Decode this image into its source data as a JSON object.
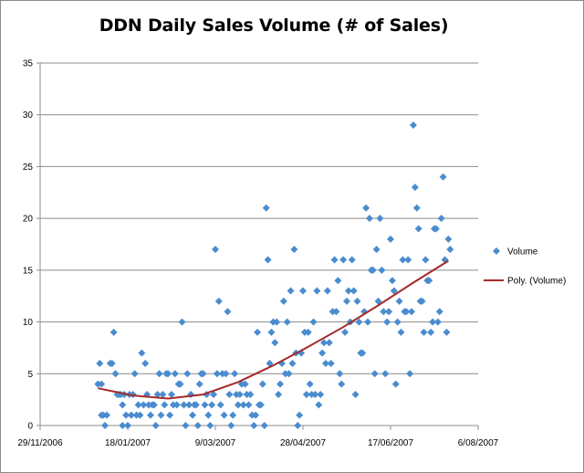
{
  "chart_data": {
    "type": "scatter",
    "title": "DDN Daily Sales Volume (# of Sales)",
    "xlabel": "",
    "ylabel": "",
    "x_ticks": [
      "29/11/2006",
      "18/01/2007",
      "9/03/2007",
      "28/04/2007",
      "17/06/2007",
      "6/08/2007"
    ],
    "xlim": [
      "2006-11-29",
      "2007-08-06"
    ],
    "ylim": [
      0,
      35
    ],
    "y_ticks": [
      0,
      5,
      10,
      15,
      20,
      25,
      30,
      35
    ],
    "grid": "horizontal",
    "legend_position": "right",
    "colors": {
      "marker": "#4a8ccf",
      "trend": "#a52a2a",
      "grid": "#8c8c8c"
    },
    "series": [
      {
        "name": "Volume",
        "kind": "markers",
        "points": [
          [
            "2007-01-01",
            4
          ],
          [
            "2007-01-02",
            6
          ],
          [
            "2007-01-03",
            4
          ],
          [
            "2007-01-03",
            1
          ],
          [
            "2007-01-04",
            1
          ],
          [
            "2007-01-05",
            0
          ],
          [
            "2007-01-06",
            1
          ],
          [
            "2007-01-08",
            6
          ],
          [
            "2007-01-09",
            6
          ],
          [
            "2007-01-10",
            9
          ],
          [
            "2007-01-11",
            5
          ],
          [
            "2007-01-12",
            3
          ],
          [
            "2007-01-13",
            3
          ],
          [
            "2007-01-14",
            3
          ],
          [
            "2007-01-15",
            0
          ],
          [
            "2007-01-15",
            2
          ],
          [
            "2007-01-16",
            3
          ],
          [
            "2007-01-17",
            1
          ],
          [
            "2007-01-18",
            0
          ],
          [
            "2007-01-19",
            3
          ],
          [
            "2007-01-20",
            1
          ],
          [
            "2007-01-21",
            3
          ],
          [
            "2007-01-22",
            5
          ],
          [
            "2007-01-23",
            1
          ],
          [
            "2007-01-24",
            2
          ],
          [
            "2007-01-25",
            1
          ],
          [
            "2007-01-26",
            7
          ],
          [
            "2007-01-27",
            2
          ],
          [
            "2007-01-28",
            6
          ],
          [
            "2007-01-29",
            3
          ],
          [
            "2007-01-30",
            2
          ],
          [
            "2007-01-31",
            1
          ],
          [
            "2007-02-01",
            2
          ],
          [
            "2007-02-02",
            2
          ],
          [
            "2007-02-03",
            0
          ],
          [
            "2007-02-04",
            3
          ],
          [
            "2007-02-05",
            5
          ],
          [
            "2007-02-06",
            1
          ],
          [
            "2007-02-07",
            3
          ],
          [
            "2007-02-08",
            2
          ],
          [
            "2007-02-09",
            5
          ],
          [
            "2007-02-10",
            5
          ],
          [
            "2007-02-11",
            1
          ],
          [
            "2007-02-12",
            3
          ],
          [
            "2007-02-13",
            2
          ],
          [
            "2007-02-14",
            5
          ],
          [
            "2007-02-15",
            2
          ],
          [
            "2007-02-16",
            4
          ],
          [
            "2007-02-17",
            4
          ],
          [
            "2007-02-18",
            10
          ],
          [
            "2007-02-19",
            2
          ],
          [
            "2007-02-20",
            0
          ],
          [
            "2007-02-21",
            5
          ],
          [
            "2007-02-22",
            2
          ],
          [
            "2007-02-23",
            3
          ],
          [
            "2007-02-24",
            1
          ],
          [
            "2007-02-25",
            2
          ],
          [
            "2007-02-26",
            2
          ],
          [
            "2007-02-27",
            0
          ],
          [
            "2007-02-28",
            4
          ],
          [
            "2007-03-01",
            5
          ],
          [
            "2007-03-02",
            5
          ],
          [
            "2007-03-03",
            2
          ],
          [
            "2007-03-04",
            3
          ],
          [
            "2007-03-05",
            1
          ],
          [
            "2007-03-06",
            0
          ],
          [
            "2007-03-07",
            2
          ],
          [
            "2007-03-08",
            3
          ],
          [
            "2007-03-09",
            17
          ],
          [
            "2007-03-10",
            5
          ],
          [
            "2007-03-11",
            12
          ],
          [
            "2007-03-12",
            2
          ],
          [
            "2007-03-13",
            5
          ],
          [
            "2007-03-14",
            1
          ],
          [
            "2007-03-15",
            5
          ],
          [
            "2007-03-16",
            11
          ],
          [
            "2007-03-17",
            3
          ],
          [
            "2007-03-18",
            0
          ],
          [
            "2007-03-19",
            1
          ],
          [
            "2007-03-20",
            5
          ],
          [
            "2007-03-21",
            3
          ],
          [
            "2007-03-22",
            2
          ],
          [
            "2007-03-23",
            3
          ],
          [
            "2007-03-24",
            4
          ],
          [
            "2007-03-25",
            2
          ],
          [
            "2007-03-26",
            4
          ],
          [
            "2007-03-27",
            3
          ],
          [
            "2007-03-28",
            2
          ],
          [
            "2007-03-29",
            3
          ],
          [
            "2007-03-30",
            1
          ],
          [
            "2007-03-31",
            0
          ],
          [
            "2007-04-01",
            1
          ],
          [
            "2007-04-02",
            9
          ],
          [
            "2007-04-03",
            2
          ],
          [
            "2007-04-04",
            2
          ],
          [
            "2007-04-05",
            4
          ],
          [
            "2007-04-06",
            0
          ],
          [
            "2007-04-07",
            21
          ],
          [
            "2007-04-08",
            16
          ],
          [
            "2007-04-09",
            6
          ],
          [
            "2007-04-10",
            9
          ],
          [
            "2007-04-11",
            10
          ],
          [
            "2007-04-12",
            8
          ],
          [
            "2007-04-13",
            10
          ],
          [
            "2007-04-14",
            3
          ],
          [
            "2007-04-15",
            4
          ],
          [
            "2007-04-16",
            6
          ],
          [
            "2007-04-17",
            12
          ],
          [
            "2007-04-18",
            5
          ],
          [
            "2007-04-19",
            10
          ],
          [
            "2007-04-20",
            5
          ],
          [
            "2007-04-21",
            13
          ],
          [
            "2007-04-22",
            6
          ],
          [
            "2007-04-23",
            17
          ],
          [
            "2007-04-24",
            7
          ],
          [
            "2007-04-25",
            0
          ],
          [
            "2007-04-26",
            1
          ],
          [
            "2007-04-27",
            7
          ],
          [
            "2007-04-28",
            13
          ],
          [
            "2007-04-29",
            9
          ],
          [
            "2007-04-30",
            3
          ],
          [
            "2007-05-01",
            9
          ],
          [
            "2007-05-02",
            4
          ],
          [
            "2007-05-03",
            3
          ],
          [
            "2007-05-04",
            10
          ],
          [
            "2007-05-05",
            3
          ],
          [
            "2007-05-06",
            13
          ],
          [
            "2007-05-07",
            2
          ],
          [
            "2007-05-08",
            3
          ],
          [
            "2007-05-09",
            7
          ],
          [
            "2007-05-10",
            8
          ],
          [
            "2007-05-11",
            6
          ],
          [
            "2007-05-12",
            13
          ],
          [
            "2007-05-13",
            8
          ],
          [
            "2007-05-14",
            6
          ],
          [
            "2007-05-15",
            11
          ],
          [
            "2007-05-16",
            16
          ],
          [
            "2007-05-17",
            11
          ],
          [
            "2007-05-18",
            14
          ],
          [
            "2007-05-19",
            5
          ],
          [
            "2007-05-20",
            4
          ],
          [
            "2007-05-21",
            16
          ],
          [
            "2007-05-22",
            9
          ],
          [
            "2007-05-23",
            12
          ],
          [
            "2007-05-24",
            13
          ],
          [
            "2007-05-25",
            10
          ],
          [
            "2007-05-26",
            16
          ],
          [
            "2007-05-27",
            13
          ],
          [
            "2007-05-28",
            3
          ],
          [
            "2007-05-29",
            12
          ],
          [
            "2007-05-30",
            10
          ],
          [
            "2007-05-31",
            7
          ],
          [
            "2007-06-01",
            7
          ],
          [
            "2007-06-02",
            11
          ],
          [
            "2007-06-03",
            21
          ],
          [
            "2007-06-04",
            10
          ],
          [
            "2007-06-05",
            20
          ],
          [
            "2007-06-06",
            15
          ],
          [
            "2007-06-07",
            15
          ],
          [
            "2007-06-08",
            5
          ],
          [
            "2007-06-09",
            17
          ],
          [
            "2007-06-10",
            12
          ],
          [
            "2007-06-11",
            20
          ],
          [
            "2007-06-12",
            15
          ],
          [
            "2007-06-13",
            11
          ],
          [
            "2007-06-14",
            5
          ],
          [
            "2007-06-15",
            10
          ],
          [
            "2007-06-16",
            11
          ],
          [
            "2007-06-17",
            18
          ],
          [
            "2007-06-18",
            14
          ],
          [
            "2007-06-19",
            13
          ],
          [
            "2007-06-20",
            4
          ],
          [
            "2007-06-21",
            10
          ],
          [
            "2007-06-22",
            12
          ],
          [
            "2007-06-23",
            9
          ],
          [
            "2007-06-24",
            16
          ],
          [
            "2007-06-25",
            11
          ],
          [
            "2007-06-26",
            11
          ],
          [
            "2007-06-27",
            16
          ],
          [
            "2007-06-28",
            5
          ],
          [
            "2007-06-29",
            11
          ],
          [
            "2007-06-30",
            29
          ],
          [
            "2007-07-01",
            23
          ],
          [
            "2007-07-02",
            21
          ],
          [
            "2007-07-03",
            19
          ],
          [
            "2007-07-04",
            12
          ],
          [
            "2007-07-05",
            12
          ],
          [
            "2007-07-06",
            9
          ],
          [
            "2007-07-07",
            16
          ],
          [
            "2007-07-08",
            14
          ],
          [
            "2007-07-09",
            14
          ],
          [
            "2007-07-10",
            9
          ],
          [
            "2007-07-11",
            10
          ],
          [
            "2007-07-12",
            19
          ],
          [
            "2007-07-13",
            19
          ],
          [
            "2007-07-14",
            10
          ],
          [
            "2007-07-15",
            11
          ],
          [
            "2007-07-16",
            20
          ],
          [
            "2007-07-17",
            24
          ],
          [
            "2007-07-18",
            16
          ],
          [
            "2007-07-19",
            9
          ],
          [
            "2007-07-20",
            18
          ],
          [
            "2007-07-21",
            17
          ]
        ]
      },
      {
        "name": "Poly. (Volume)",
        "kind": "trendline",
        "points": [
          [
            "2007-01-01",
            3.6
          ],
          [
            "2007-01-21",
            2.9
          ],
          [
            "2007-02-10",
            2.6
          ],
          [
            "2007-03-02",
            3.0
          ],
          [
            "2007-03-22",
            4.2
          ],
          [
            "2007-04-11",
            5.8
          ],
          [
            "2007-05-01",
            7.6
          ],
          [
            "2007-05-21",
            9.5
          ],
          [
            "2007-06-10",
            11.6
          ],
          [
            "2007-06-30",
            13.8
          ],
          [
            "2007-07-20",
            15.9
          ]
        ]
      }
    ]
  }
}
